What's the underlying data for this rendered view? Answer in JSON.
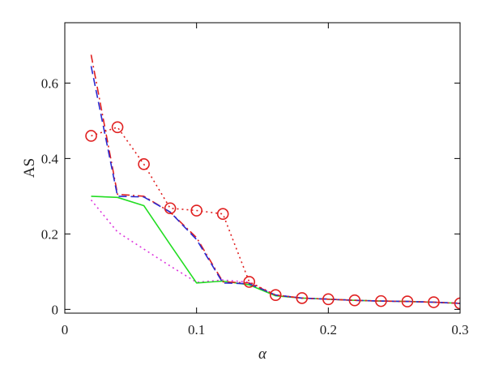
{
  "chart_data": {
    "type": "line",
    "title": "",
    "xlabel": "α",
    "ylabel": "AS",
    "xlim": [
      0,
      0.3
    ],
    "ylim": [
      -0.01,
      0.76
    ],
    "xticks": [
      0,
      0.1,
      0.2,
      0.3
    ],
    "xtick_labels": [
      "0",
      "0.1",
      "0.2",
      "0.3"
    ],
    "yticks": [
      0,
      0.2,
      0.4,
      0.6
    ],
    "ytick_labels": [
      "0",
      "0.2",
      "0.4",
      "0.6"
    ],
    "grid": false,
    "legend": "none",
    "series": [
      {
        "style": "dotted-circles",
        "color": "#e02020",
        "x": [
          0.02,
          0.04,
          0.06,
          0.08,
          0.1,
          0.12,
          0.14,
          0.16,
          0.18,
          0.2,
          0.22,
          0.24,
          0.26,
          0.28,
          0.3
        ],
        "y": [
          0.46,
          0.483,
          0.385,
          0.268,
          0.262,
          0.253,
          0.073,
          0.038,
          0.03,
          0.027,
          0.024,
          0.022,
          0.021,
          0.019,
          0.016
        ]
      },
      {
        "style": "dash-dot",
        "color": "#e02020",
        "x": [
          0.02,
          0.04,
          0.06,
          0.08,
          0.1,
          0.12,
          0.14,
          0.16,
          0.18,
          0.2,
          0.22,
          0.24,
          0.26,
          0.28,
          0.3
        ],
        "y": [
          0.675,
          0.305,
          0.3,
          0.258,
          0.19,
          0.073,
          0.07,
          0.038,
          0.03,
          0.027,
          0.024,
          0.022,
          0.021,
          0.019,
          0.016
        ]
      },
      {
        "style": "dashed",
        "color": "#2a2ad0",
        "x": [
          0.02,
          0.04,
          0.06,
          0.08,
          0.1,
          0.12,
          0.14,
          0.16,
          0.18,
          0.2,
          0.22,
          0.24,
          0.26,
          0.28,
          0.3
        ],
        "y": [
          0.645,
          0.3,
          0.298,
          0.258,
          0.185,
          0.07,
          0.068,
          0.038,
          0.03,
          0.027,
          0.024,
          0.022,
          0.021,
          0.019,
          0.016
        ]
      },
      {
        "style": "solid",
        "color": "#22dd22",
        "x": [
          0.02,
          0.04,
          0.06,
          0.08,
          0.1,
          0.12,
          0.14,
          0.16,
          0.18,
          0.2,
          0.22,
          0.24,
          0.26,
          0.28,
          0.3
        ],
        "y": [
          0.3,
          0.297,
          0.275,
          0.172,
          0.07,
          0.075,
          0.065,
          0.036,
          0.03,
          0.027,
          0.024,
          0.022,
          0.021,
          0.019,
          0.016
        ]
      },
      {
        "style": "dotted",
        "color": "#dd33dd",
        "x": [
          0.02,
          0.04,
          0.06,
          0.08,
          0.1,
          0.12,
          0.14,
          0.16,
          0.18,
          0.2,
          0.22,
          0.24,
          0.26,
          0.28,
          0.3
        ],
        "y": [
          0.29,
          0.205,
          0.16,
          0.115,
          0.072,
          0.078,
          0.072,
          0.036,
          0.03,
          0.027,
          0.024,
          0.022,
          0.021,
          0.019,
          0.016
        ]
      }
    ]
  }
}
